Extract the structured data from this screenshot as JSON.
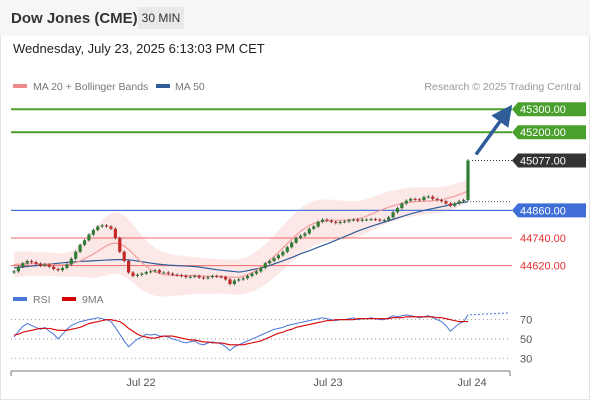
{
  "header": {
    "title": "Dow Jones (CME)",
    "timeframe": "30 MIN"
  },
  "datetime": "Wednesday, July 23, 2025 6:13:03 PM CET",
  "legend": {
    "ma20": "MA 20 + Bollinger Bands",
    "ma50": "MA 50",
    "credit": "Research © 2025 Trading Central"
  },
  "rsi_legend": {
    "rsi": "RSI",
    "ma9": "9MA"
  },
  "colors": {
    "green": "#4aa02c",
    "blue": "#4a76d8",
    "red": "#ee6a6a",
    "candle_up": "#2e7d32",
    "candle_down": "#c62828",
    "rsi": "#4a76d8",
    "rsi_ma": "#d80000",
    "arrow": "#2f5d9a",
    "band": "#fde8e8"
  },
  "chart_data": [
    {
      "type": "candlestick",
      "x_ticks": [
        "Jul 22",
        "Jul 23",
        "Jul 24"
      ],
      "ylim": [
        44540,
        45340
      ],
      "price_levels": [
        {
          "label": "45300.00",
          "value": 45300,
          "kind": "resistance"
        },
        {
          "label": "45200.00",
          "value": 45200,
          "kind": "resistance"
        },
        {
          "label": "45077.00",
          "value": 45077,
          "kind": "last"
        },
        {
          "label": "44860.00",
          "value": 44860,
          "kind": "pivot"
        },
        {
          "label": "44740.00",
          "value": 44740,
          "kind": "support"
        },
        {
          "label": "44620.00",
          "value": 44620,
          "kind": "support"
        }
      ],
      "close": [
        44595,
        44615,
        44630,
        44640,
        44635,
        44628,
        44620,
        44625,
        44615,
        44605,
        44600,
        44610,
        44625,
        44650,
        44680,
        44710,
        44730,
        44755,
        44775,
        44790,
        44795,
        44790,
        44780,
        44740,
        44680,
        44640,
        44590,
        44575,
        44580,
        44585,
        44592,
        44595,
        44600,
        44590,
        44590,
        44585,
        44580,
        44578,
        44575,
        44570,
        44572,
        44575,
        44568,
        44565,
        44570,
        44575,
        44572,
        44570,
        44560,
        44540,
        44555,
        44560,
        44565,
        44575,
        44585,
        44595,
        44610,
        44630,
        44640,
        44652,
        44665,
        44680,
        44700,
        44720,
        44740,
        44750,
        44760,
        44780,
        44790,
        44810,
        44820,
        44815,
        44810,
        44805,
        44810,
        44812,
        44818,
        44820,
        44815,
        44820,
        44820,
        44822,
        44820,
        44816,
        44818,
        44830,
        44852,
        44870,
        44890,
        44902,
        44910,
        44908,
        44905,
        44918,
        44920,
        44910,
        44905,
        44900,
        44890,
        44880,
        44890,
        44900,
        44905,
        45077
      ],
      "ma20": [
        44625,
        44626,
        44627,
        44628,
        44628,
        44628,
        44627,
        44627,
        44626,
        44625,
        44623,
        44623,
        44624,
        44627,
        44633,
        44640,
        44650,
        44660,
        44670,
        44682,
        44695,
        44706,
        44715,
        44718,
        44714,
        44705,
        44690,
        44672,
        44652,
        44633,
        44617,
        44603,
        44593,
        44586,
        44581,
        44579,
        44578,
        44577,
        44577,
        44577,
        44577,
        44577,
        44576,
        44575,
        44574,
        44574,
        44574,
        44573,
        44572,
        44570,
        44569,
        44570,
        44574,
        44580,
        44589,
        44600,
        44612,
        44626,
        44642,
        44660,
        44678,
        44697,
        44716,
        44734,
        44752,
        44769,
        44783,
        44794,
        44803,
        44809,
        44813,
        44816,
        44817,
        44817,
        44817,
        44818,
        44818,
        44820,
        44823,
        44828,
        44835,
        44843,
        44851,
        44859,
        44867,
        44874,
        44880,
        44885,
        44889,
        44893,
        44896,
        44898,
        44899,
        44900,
        44901,
        44902,
        44904,
        44907,
        44911,
        44916,
        44922,
        44929,
        44936,
        44944
      ],
      "ma50": [
        44610,
        44612,
        44614,
        44616,
        44618,
        44620,
        44622,
        44624,
        44626,
        44628,
        44630,
        44632,
        44634,
        44636,
        44637,
        44638,
        44639,
        44640,
        44641,
        44642,
        44643,
        44644,
        44645,
        44646,
        44646,
        44646,
        44645,
        44643,
        44640,
        44637,
        44634,
        44631,
        44628,
        44626,
        44624,
        44622,
        44621,
        44620,
        44619,
        44618,
        44617,
        44616,
        44614,
        44611,
        44608,
        44605,
        44602,
        44600,
        44598,
        44596,
        44594,
        44592,
        44594,
        44598,
        44602,
        44606,
        44610,
        44615,
        44620,
        44627,
        44634,
        44641,
        44648,
        44655,
        44663,
        44671,
        44678,
        44685,
        44692,
        44700,
        44707,
        44714,
        44722,
        44730,
        44738,
        44746,
        44754,
        44762,
        44770,
        44777,
        44784,
        44791,
        44797,
        44803,
        44809,
        44815,
        44821,
        44827,
        44833,
        44839,
        44845,
        44850,
        44855,
        44860,
        44864,
        44868,
        44872,
        44876,
        44880,
        44884,
        44888,
        44892,
        44895,
        44898
      ],
      "band_width": [
        55,
        55,
        54,
        54,
        53,
        52,
        52,
        51,
        51,
        50,
        50,
        50,
        52,
        56,
        62,
        70,
        80,
        92,
        104,
        114,
        122,
        128,
        132,
        134,
        134,
        133,
        130,
        127,
        123,
        118,
        113,
        108,
        104,
        100,
        96,
        93,
        90,
        88,
        86,
        84,
        82,
        80,
        79,
        78,
        77,
        76,
        76,
        75,
        75,
        75,
        76,
        77,
        78,
        80,
        82,
        84,
        86,
        88,
        90,
        92,
        94,
        96,
        98,
        99,
        100,
        100,
        100,
        99,
        98,
        96,
        94,
        92,
        90,
        88,
        86,
        84,
        82,
        80,
        78,
        76,
        74,
        72,
        71,
        70,
        69,
        68,
        67,
        66,
        65,
        64,
        63,
        62,
        61,
        60,
        59,
        58,
        57,
        56,
        55,
        54,
        53,
        52,
        51,
        50
      ],
      "arrow": {
        "from_value": 45077,
        "to_value": 45300
      }
    },
    {
      "type": "line",
      "name": "RSI",
      "ylim": [
        20,
        80
      ],
      "y_ticks": [
        70,
        50,
        30
      ],
      "rsi": [
        52,
        58,
        63,
        66,
        64,
        62,
        60,
        62,
        58,
        55,
        50,
        55,
        60,
        64,
        66,
        68,
        69,
        70,
        71,
        72,
        71,
        70,
        68,
        62,
        55,
        48,
        42,
        46,
        50,
        52,
        55,
        54,
        55,
        53,
        53,
        52,
        50,
        49,
        47,
        46,
        47,
        48,
        45,
        44,
        46,
        47,
        46,
        45,
        42,
        38,
        42,
        44,
        46,
        48,
        50,
        52,
        54,
        56,
        58,
        60,
        61,
        62,
        64,
        65,
        66,
        67,
        68,
        69,
        70,
        71,
        72,
        71,
        70,
        69,
        70,
        70,
        71,
        72,
        70,
        71,
        71,
        72,
        71,
        70,
        70,
        72,
        74,
        73,
        74,
        75,
        74,
        73,
        72,
        73,
        74,
        72,
        70,
        68,
        64,
        58,
        62,
        66,
        68,
        75
      ],
      "ma9": [
        54,
        55,
        57,
        58,
        59,
        60,
        61,
        61,
        61,
        60,
        59,
        59,
        59,
        60,
        61,
        62,
        64,
        66,
        67,
        68,
        69,
        70,
        70,
        69,
        68,
        65,
        61,
        58,
        55,
        53,
        52,
        51,
        51,
        52,
        53,
        53,
        53,
        52,
        51,
        50,
        49,
        49,
        48,
        47,
        47,
        46,
        46,
        46,
        45,
        44,
        44,
        44,
        44,
        45,
        46,
        47,
        48,
        50,
        52,
        54,
        56,
        57,
        59,
        60,
        62,
        63,
        64,
        65,
        66,
        67,
        68,
        69,
        69,
        70,
        70,
        70,
        70,
        70,
        71,
        71,
        71,
        71,
        71,
        71,
        71,
        71,
        72,
        72,
        72,
        73,
        73,
        73,
        73,
        73,
        73,
        73,
        72,
        72,
        71,
        70,
        69,
        68,
        68,
        68
      ]
    }
  ]
}
